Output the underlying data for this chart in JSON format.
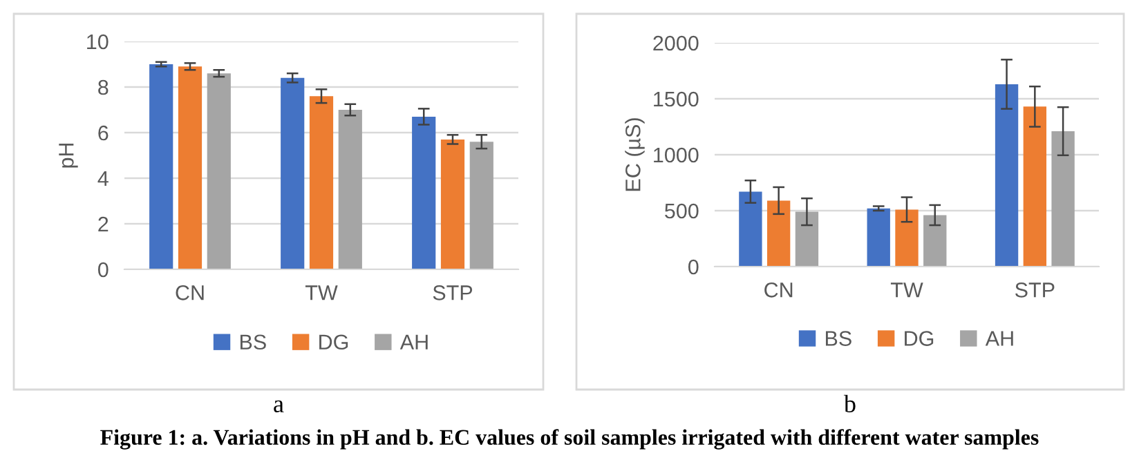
{
  "chart_data": [
    {
      "type": "bar",
      "ylabel": "pH",
      "categories": [
        "CN",
        "TW",
        "STP"
      ],
      "ylim": [
        0,
        10
      ],
      "yticks": [
        0,
        2,
        4,
        6,
        8,
        10
      ],
      "grid": "y",
      "legend": "bottom",
      "series": [
        {
          "name": "BS",
          "color": "#4472c4",
          "values": [
            9.0,
            8.4,
            6.7
          ],
          "errors": [
            0.1,
            0.2,
            0.35
          ]
        },
        {
          "name": "DG",
          "color": "#ed7d31",
          "values": [
            8.9,
            7.6,
            5.7
          ],
          "errors": [
            0.15,
            0.3,
            0.2
          ]
        },
        {
          "name": "AH",
          "color": "#a5a5a5",
          "values": [
            8.6,
            7.0,
            5.6
          ],
          "errors": [
            0.15,
            0.25,
            0.3
          ]
        }
      ],
      "annotations": [
        "a"
      ]
    },
    {
      "type": "bar",
      "ylabel": "EC (µS)",
      "categories": [
        "CN",
        "TW",
        "STP"
      ],
      "ylim": [
        0,
        2000
      ],
      "yticks": [
        0,
        500,
        1000,
        1500,
        2000
      ],
      "grid": "y",
      "legend": "bottom",
      "series": [
        {
          "name": "BS",
          "color": "#4472c4",
          "values": [
            670,
            520,
            1630
          ],
          "errors": [
            100,
            20,
            220
          ]
        },
        {
          "name": "DG",
          "color": "#ed7d31",
          "values": [
            590,
            510,
            1430
          ],
          "errors": [
            120,
            110,
            180
          ]
        },
        {
          "name": "AH",
          "color": "#a5a5a5",
          "values": [
            490,
            460,
            1210
          ],
          "errors": [
            120,
            90,
            215
          ]
        }
      ],
      "annotations": [
        "b",
        "Figure 1: a. Variations in pH and b. EC values of soil samples irrigated with different water samples"
      ]
    }
  ]
}
